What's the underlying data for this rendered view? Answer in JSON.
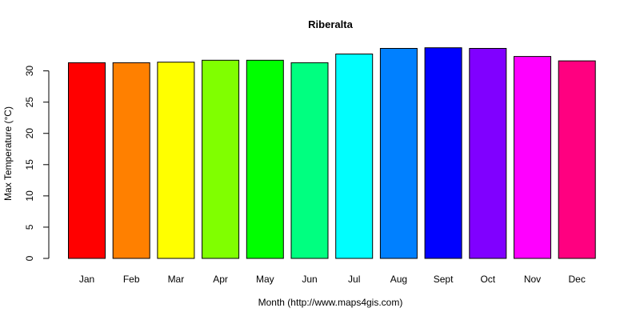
{
  "chart_data": {
    "type": "bar",
    "title": "Riberalta",
    "xlabel": "Month (http://www.maps4gis.com)",
    "ylabel": "Max Temperature (°C)",
    "categories": [
      "Jan",
      "Feb",
      "Mar",
      "Apr",
      "May",
      "Jun",
      "Jul",
      "Aug",
      "Sept",
      "Oct",
      "Nov",
      "Dec"
    ],
    "values": [
      31.3,
      31.3,
      31.4,
      31.7,
      31.7,
      31.3,
      32.7,
      33.6,
      33.7,
      33.6,
      32.3,
      31.6
    ],
    "colors": [
      "#FF0000",
      "#FF8000",
      "#FFFF00",
      "#80FF00",
      "#00FF00",
      "#00FF80",
      "#00FFFF",
      "#0080FF",
      "#0000FF",
      "#8000FF",
      "#FF00FF",
      "#FF0080"
    ],
    "yticks": [
      0,
      5,
      10,
      15,
      20,
      25,
      30
    ],
    "ylim": [
      0,
      34.3
    ],
    "grid": false,
    "legend": "none"
  }
}
